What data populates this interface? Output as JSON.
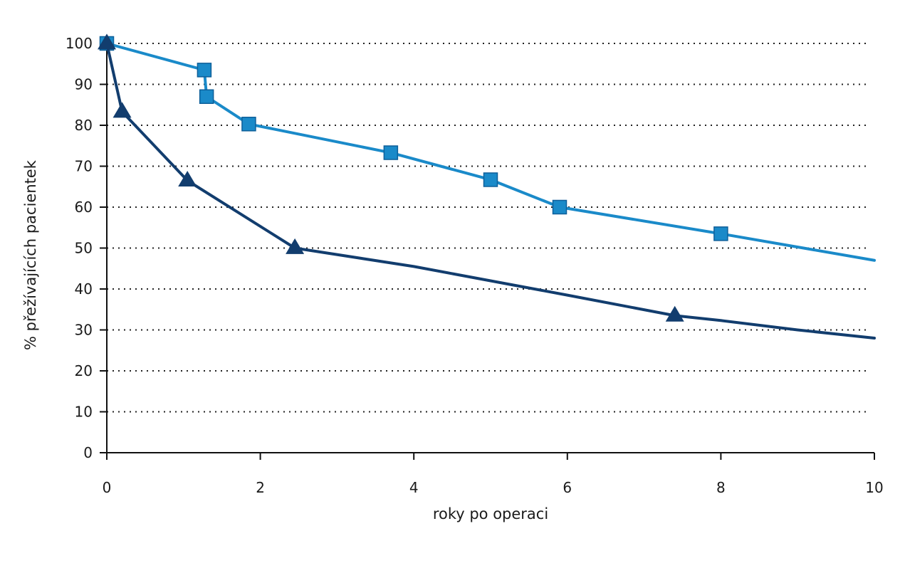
{
  "chart_data": {
    "type": "line",
    "title": "",
    "xlabel": "roky po operaci",
    "ylabel": "% přežívajících pacientek",
    "xlim": [
      0,
      10
    ],
    "ylim": [
      0,
      100
    ],
    "x_ticks": [
      0,
      2,
      4,
      6,
      8,
      10
    ],
    "y_ticks": [
      0,
      10,
      20,
      30,
      40,
      50,
      60,
      70,
      80,
      90,
      100
    ],
    "grid": "horizontal dotted",
    "series": [
      {
        "color": "#1a8ac9",
        "marker": "square",
        "line": [
          [
            0,
            100
          ],
          [
            1.27,
            93.5
          ],
          [
            1.3,
            87
          ],
          [
            1.85,
            80.3
          ],
          [
            3.7,
            73.3
          ],
          [
            5.0,
            66.7
          ],
          [
            5.9,
            60.0
          ],
          [
            8.0,
            53.5
          ],
          [
            10.0,
            47.0
          ]
        ],
        "markers": [
          [
            0,
            100
          ],
          [
            1.27,
            93.5
          ],
          [
            1.3,
            87
          ],
          [
            1.85,
            80.3
          ],
          [
            3.7,
            73.3
          ],
          [
            5.0,
            66.7
          ],
          [
            5.9,
            60.0
          ],
          [
            8.0,
            53.5
          ]
        ]
      },
      {
        "color": "#123d6e",
        "marker": "triangle",
        "line": [
          [
            0,
            100
          ],
          [
            0.2,
            83.3
          ],
          [
            1.05,
            66.5
          ],
          [
            2.45,
            50.0
          ],
          [
            4.0,
            45.5
          ],
          [
            5.0,
            42.0
          ],
          [
            6.0,
            38.5
          ],
          [
            7.4,
            33.5
          ],
          [
            8.0,
            32.3
          ],
          [
            9.0,
            30.0
          ],
          [
            10.0,
            28.0
          ]
        ],
        "markers": [
          [
            0,
            100
          ],
          [
            0.2,
            83.3
          ],
          [
            1.05,
            66.5
          ],
          [
            2.45,
            50.0
          ],
          [
            7.4,
            33.5
          ]
        ]
      }
    ]
  }
}
